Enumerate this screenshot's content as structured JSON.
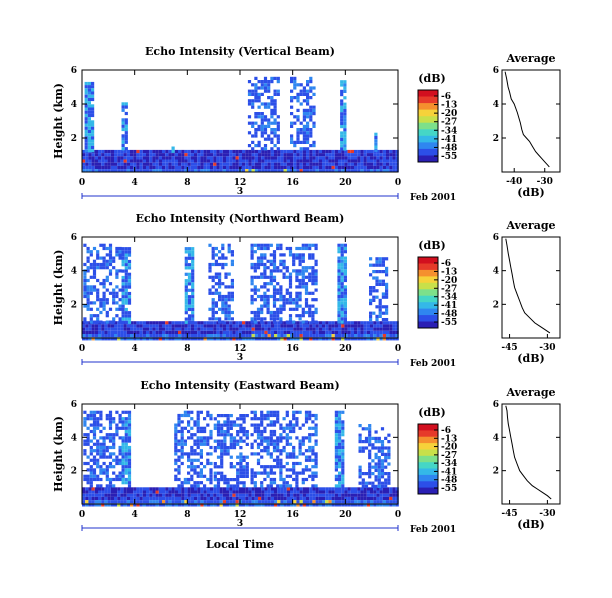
{
  "colors": {
    "scale": [
      "#2a1fb4",
      "#2c4fe8",
      "#2f86f0",
      "#34b8e8",
      "#45d6c6",
      "#7de08a",
      "#c8e04a",
      "#f6d23a",
      "#f5902e",
      "#e63a2a",
      "#d20f1f"
    ],
    "date_axis": "#2233cc"
  },
  "figure": {
    "bottom_label": "Local Time"
  },
  "chart_data": [
    {
      "type": "heatmap",
      "title": "Echo Intensity (Vertical Beam)",
      "ylabel": "Height (km)",
      "xlabel": "",
      "xlim": [
        0,
        24
      ],
      "ylim": [
        0,
        6
      ],
      "xticks": [
        "0",
        "4",
        "8",
        "12",
        "16",
        "20",
        "0"
      ],
      "yticks": [
        "2",
        "4",
        "6"
      ],
      "date_axis": {
        "label": "3",
        "suffix": "Feb 2001"
      },
      "colorbar": {
        "title": "(dB)",
        "ticks": [
          "-6",
          "-13",
          "-20",
          "-27",
          "-34",
          "-41",
          "-48",
          "-55"
        ]
      },
      "echo_columns": [
        {
          "start": 0.2,
          "end": 0.8,
          "top": 5.3
        },
        {
          "start": 3.0,
          "end": 3.4,
          "top": 4.1
        },
        {
          "start": 6.8,
          "end": 7.0,
          "top": 1.5
        },
        {
          "start": 12.6,
          "end": 15.0,
          "top": 5.6
        },
        {
          "start": 15.8,
          "end": 17.6,
          "top": 5.6
        },
        {
          "start": 19.6,
          "end": 20.0,
          "top": 5.4
        },
        {
          "start": 22.2,
          "end": 22.4,
          "top": 2.5
        }
      ],
      "boundary_layer_top_km": 1.3,
      "profile": {
        "title": "Average",
        "xlabel": "(dB)",
        "xlim": [
          -44,
          -25
        ],
        "ylim": [
          0,
          6
        ],
        "xticks": [
          "-40",
          "-30"
        ],
        "yticks": [
          "2",
          "4",
          "6"
        ],
        "x": [
          -43,
          -42.5,
          -42,
          -41.5,
          -41,
          -40,
          -39,
          -38.5,
          -38,
          -37.5,
          -37,
          -36,
          -35,
          -34,
          -33,
          -32,
          -31,
          -30,
          -29,
          -28.5
        ],
        "y": [
          5.9,
          5.5,
          5.0,
          4.7,
          4.3,
          4.0,
          3.5,
          3.2,
          2.9,
          2.5,
          2.2,
          2.0,
          1.8,
          1.5,
          1.2,
          1.0,
          0.8,
          0.6,
          0.4,
          0.3
        ]
      }
    },
    {
      "type": "heatmap",
      "title": "Echo Intensity (Northward Beam)",
      "ylabel": "Height (km)",
      "xlabel": "",
      "xlim": [
        0,
        24
      ],
      "ylim": [
        0,
        6
      ],
      "xticks": [
        "0",
        "4",
        "8",
        "12",
        "16",
        "20",
        "0"
      ],
      "yticks": [
        "2",
        "4",
        "6"
      ],
      "date_axis": {
        "label": "3",
        "suffix": "Feb 2001"
      },
      "colorbar": {
        "title": "(dB)",
        "ticks": [
          "-6",
          "-13",
          "-20",
          "-27",
          "-34",
          "-41",
          "-48",
          "-55"
        ]
      },
      "echo_columns": [
        {
          "start": 0.1,
          "end": 3.0,
          "top": 5.6
        },
        {
          "start": 3.0,
          "end": 3.6,
          "top": 5.4
        },
        {
          "start": 7.8,
          "end": 8.4,
          "top": 5.4
        },
        {
          "start": 9.6,
          "end": 11.4,
          "top": 5.6
        },
        {
          "start": 12.8,
          "end": 17.8,
          "top": 5.6
        },
        {
          "start": 19.4,
          "end": 20.0,
          "top": 5.6
        },
        {
          "start": 21.8,
          "end": 23.2,
          "top": 4.8
        }
      ],
      "boundary_layer_top_km": 1.0,
      "profile": {
        "title": "Average",
        "xlabel": "(dB)",
        "xlim": [
          -48,
          -25
        ],
        "ylim": [
          0,
          6
        ],
        "xticks": [
          "-45",
          "-30"
        ],
        "yticks": [
          "2",
          "4",
          "6"
        ],
        "x": [
          -46.5,
          -46,
          -45.5,
          -45,
          -44.5,
          -44,
          -43.5,
          -43,
          -42,
          -41,
          -40,
          -39,
          -37,
          -35,
          -33,
          -31,
          -29
        ],
        "y": [
          5.9,
          5.5,
          5.0,
          4.6,
          4.2,
          3.8,
          3.4,
          3.0,
          2.6,
          2.2,
          1.8,
          1.5,
          1.2,
          0.9,
          0.7,
          0.5,
          0.3
        ]
      }
    },
    {
      "type": "heatmap",
      "title": "Echo Intensity (Eastward Beam)",
      "ylabel": "Height (km)",
      "xlabel": "",
      "xlim": [
        0,
        24
      ],
      "ylim": [
        0,
        6
      ],
      "xticks": [
        "0",
        "4",
        "8",
        "12",
        "16",
        "20",
        "0"
      ],
      "yticks": [
        "2",
        "4",
        "6"
      ],
      "date_axis": {
        "label": "3",
        "suffix": "Feb 2001"
      },
      "colorbar": {
        "title": "(dB)",
        "ticks": [
          "-6",
          "-13",
          "-20",
          "-27",
          "-34",
          "-41",
          "-48",
          "-55"
        ]
      },
      "echo_columns": [
        {
          "start": 0.1,
          "end": 3.0,
          "top": 5.6
        },
        {
          "start": 3.0,
          "end": 3.6,
          "top": 5.6
        },
        {
          "start": 7.0,
          "end": 9.8,
          "top": 5.6
        },
        {
          "start": 10.0,
          "end": 12.6,
          "top": 5.4
        },
        {
          "start": 12.8,
          "end": 17.8,
          "top": 5.6
        },
        {
          "start": 19.2,
          "end": 19.8,
          "top": 5.6
        },
        {
          "start": 21.0,
          "end": 23.2,
          "top": 4.8
        }
      ],
      "boundary_layer_top_km": 1.0,
      "profile": {
        "title": "Average",
        "xlabel": "(dB)",
        "xlim": [
          -48,
          -25
        ],
        "ylim": [
          0,
          6
        ],
        "xticks": [
          "-45",
          "-30"
        ],
        "yticks": [
          "2",
          "4",
          "6"
        ],
        "x": [
          -46.5,
          -46,
          -45.8,
          -45.5,
          -45,
          -44.5,
          -44,
          -43.5,
          -43,
          -42,
          -41,
          -39.5,
          -38,
          -36,
          -34,
          -32,
          -30,
          -28.5
        ],
        "y": [
          5.9,
          5.6,
          5.2,
          4.8,
          4.4,
          4.0,
          3.6,
          3.2,
          2.8,
          2.4,
          2.0,
          1.7,
          1.4,
          1.1,
          0.9,
          0.7,
          0.5,
          0.3
        ]
      }
    }
  ]
}
